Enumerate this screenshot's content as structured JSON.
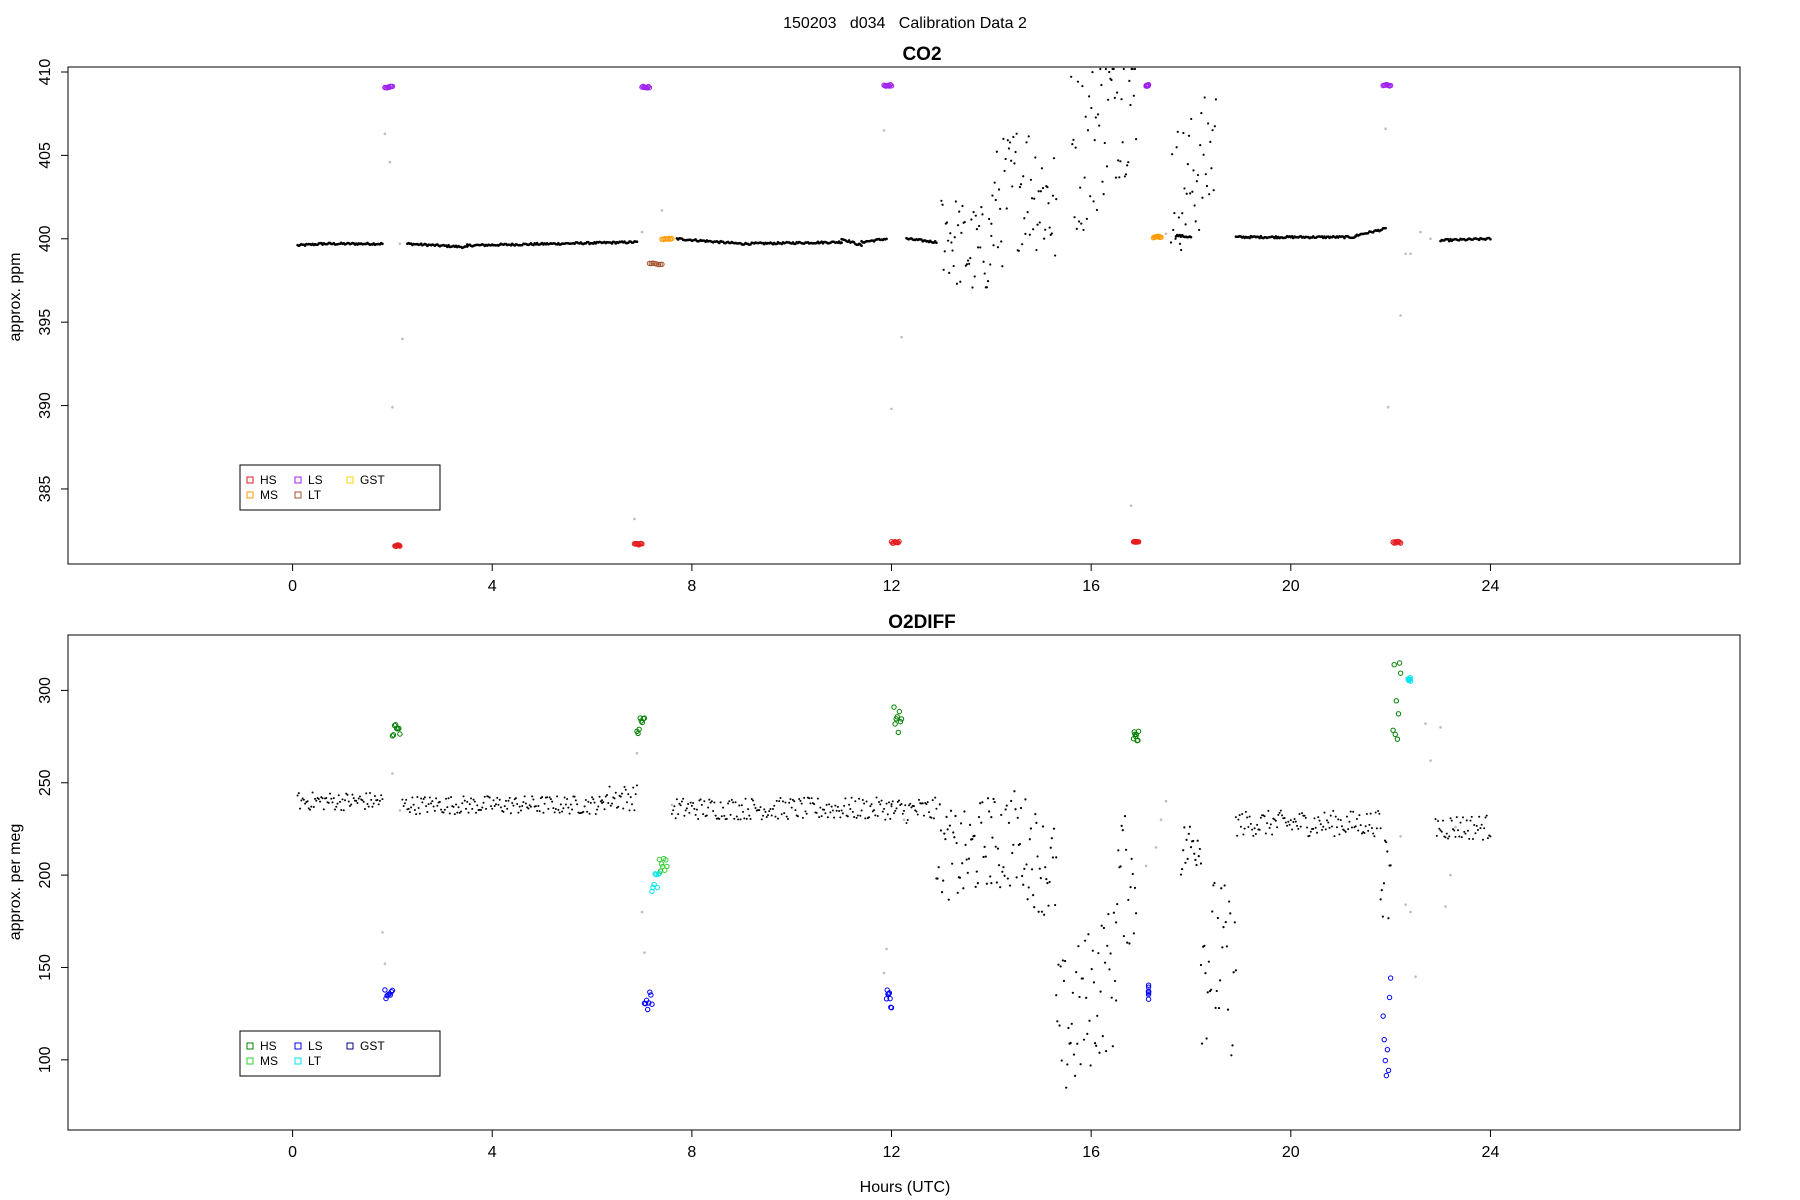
{
  "figure_title": "150203   d034   Calibration Data 2",
  "xlabel": "Hours (UTC)",
  "colors": {
    "ambient": "#000000",
    "grey": "#bdbdbd"
  },
  "chart_data": [
    {
      "type": "scatter",
      "title": "CO2",
      "xlabel": "",
      "ylabel": "approx. ppm",
      "xlim": [
        -4.5,
        29
      ],
      "ylim": [
        380.5,
        410.3
      ],
      "xticks": [
        0,
        4,
        8,
        12,
        16,
        20,
        24
      ],
      "yticks": [
        385,
        390,
        395,
        400,
        405,
        410
      ],
      "legend": {
        "position": "bottom-left",
        "entries": [
          {
            "label": "HS",
            "color": "#e41a1c"
          },
          {
            "label": "MS",
            "color": "#ff9900"
          },
          {
            "label": "LS",
            "color": "#a020f0"
          },
          {
            "label": "LT",
            "color": "#a0522d"
          },
          {
            "label": "GST",
            "color": "#ffd700"
          }
        ]
      },
      "ambient_segments": [
        [
          0.1,
          0.6,
          399.6,
          399.7
        ],
        [
          0.6,
          1.8,
          399.7,
          399.7
        ],
        [
          2.3,
          3.5,
          399.7,
          399.5
        ],
        [
          3.5,
          6.9,
          399.6,
          399.8
        ],
        [
          7.7,
          9.0,
          400.0,
          399.7
        ],
        [
          9.0,
          11.0,
          399.7,
          399.8
        ],
        [
          11.0,
          11.4,
          400.0,
          399.6
        ],
        [
          11.4,
          11.9,
          399.8,
          400.0
        ],
        [
          12.3,
          12.9,
          400.0,
          399.8
        ],
        [
          17.7,
          18.0,
          400.2,
          400.1
        ],
        [
          18.9,
          21.3,
          400.1,
          400.1
        ],
        [
          21.3,
          21.9,
          400.2,
          400.6
        ],
        [
          23.0,
          24.0,
          399.9,
          400.0
        ]
      ],
      "variable_segments": [
        [
          13.0,
          14.0,
          400.2,
          2.8
        ],
        [
          14.0,
          15.3,
          402.0,
          4.0
        ],
        [
          15.6,
          16.9,
          407.0,
          5.0
        ],
        [
          17.6,
          18.5,
          404.5,
          4.0
        ]
      ],
      "grey_points": [
        [
          1.85,
          406.3
        ],
        [
          1.95,
          404.6
        ],
        [
          2.15,
          399.7
        ],
        [
          2.2,
          394.0
        ],
        [
          2.0,
          389.9
        ],
        [
          7.0,
          400.4
        ],
        [
          7.4,
          401.7
        ],
        [
          6.85,
          383.2
        ],
        [
          11.85,
          406.5
        ],
        [
          12.0,
          389.8
        ],
        [
          12.2,
          394.1
        ],
        [
          16.8,
          384.0
        ],
        [
          17.5,
          400.3
        ],
        [
          21.95,
          389.9
        ],
        [
          21.9,
          406.6
        ],
        [
          22.3,
          399.1
        ],
        [
          22.4,
          399.1
        ],
        [
          22.6,
          400.4
        ],
        [
          22.8,
          400.0
        ],
        [
          22.2,
          395.4
        ]
      ],
      "cal_groups": [
        {
          "label": "LS",
          "x": [
            1.85,
            2.0
          ],
          "y": 409.1
        },
        {
          "label": "HS",
          "x": [
            2.05,
            2.15
          ],
          "y": 381.6
        },
        {
          "label": "HS",
          "x": [
            6.85,
            7.0
          ],
          "y": 381.7
        },
        {
          "label": "LS",
          "x": [
            7.0,
            7.15
          ],
          "y": 409.1
        },
        {
          "label": "LT",
          "x": [
            7.15,
            7.4
          ],
          "y": 398.5
        },
        {
          "label": "MS",
          "x": [
            7.4,
            7.6
          ],
          "y": 400.0
        },
        {
          "label": "LS",
          "x": [
            11.85,
            12.0
          ],
          "y": 409.2
        },
        {
          "label": "HS",
          "x": [
            12.0,
            12.15
          ],
          "y": 381.8
        },
        {
          "label": "HS",
          "x": [
            16.85,
            16.95
          ],
          "y": 381.8
        },
        {
          "label": "LS",
          "x": [
            17.1,
            17.15
          ],
          "y": 409.2
        },
        {
          "label": "MS",
          "x": [
            17.25,
            17.4
          ],
          "y": 400.1
        },
        {
          "label": "LS",
          "x": [
            21.85,
            22.0
          ],
          "y": 409.2
        },
        {
          "label": "HS",
          "x": [
            22.05,
            22.2
          ],
          "y": 381.8
        }
      ]
    },
    {
      "type": "scatter",
      "title": "O2DIFF",
      "xlabel": "Hours (UTC)",
      "ylabel": "approx. per meg",
      "xlim": [
        -4.5,
        29
      ],
      "ylim": [
        62,
        330
      ],
      "xticks": [
        0,
        4,
        8,
        12,
        16,
        20,
        24
      ],
      "yticks": [
        100,
        150,
        200,
        250,
        300
      ],
      "legend": {
        "position": "bottom-left",
        "entries": [
          {
            "label": "HS",
            "color": "#008000"
          },
          {
            "label": "MS",
            "color": "#32cd32"
          },
          {
            "label": "LS",
            "color": "#0000ff"
          },
          {
            "label": "LT",
            "color": "#00e5ee"
          },
          {
            "label": "GST",
            "color": "#00008b"
          }
        ]
      },
      "ambient_segments": [
        [
          0.1,
          1.8,
          240,
          5
        ],
        [
          2.2,
          6.2,
          238,
          5
        ],
        [
          6.2,
          6.9,
          242,
          7
        ],
        [
          7.6,
          12.0,
          236,
          6
        ],
        [
          12.0,
          12.9,
          235,
          7
        ],
        [
          18.9,
          21.8,
          228,
          7
        ],
        [
          22.9,
          24.0,
          226,
          7
        ]
      ],
      "variable_segments": [
        [
          12.9,
          14.0,
          218,
          25
        ],
        [
          14.0,
          15.3,
          210,
          28
        ],
        [
          15.3,
          16.5,
          130,
          40
        ],
        [
          16.5,
          16.9,
          190,
          35
        ],
        [
          17.8,
          18.2,
          215,
          15
        ],
        [
          18.2,
          18.9,
          140,
          45
        ],
        [
          21.8,
          22.0,
          195,
          30
        ]
      ],
      "grey_points": [
        [
          1.8,
          169
        ],
        [
          1.85,
          152
        ],
        [
          2.0,
          255
        ],
        [
          2.15,
          235
        ],
        [
          6.9,
          266
        ],
        [
          7.0,
          180
        ],
        [
          7.05,
          158
        ],
        [
          7.6,
          238
        ],
        [
          11.85,
          147
        ],
        [
          11.9,
          160
        ],
        [
          12.25,
          230
        ],
        [
          17.1,
          205
        ],
        [
          17.3,
          215
        ],
        [
          17.4,
          230
        ],
        [
          17.5,
          240
        ],
        [
          22.2,
          221
        ],
        [
          22.3,
          184
        ],
        [
          22.4,
          180
        ],
        [
          22.5,
          145
        ],
        [
          22.7,
          282
        ],
        [
          22.8,
          262
        ],
        [
          23.0,
          280
        ],
        [
          23.1,
          183
        ],
        [
          23.2,
          200
        ],
        [
          23.3,
          226
        ]
      ],
      "cal_groups": [
        {
          "label": "LS",
          "x": [
            1.85,
            2.0
          ],
          "y": 135,
          "spread": 4
        },
        {
          "label": "HS",
          "x": [
            2.0,
            2.15
          ],
          "y": 279,
          "spread": 4
        },
        {
          "label": "HS",
          "x": [
            6.9,
            7.05
          ],
          "y": 281,
          "spread": 6
        },
        {
          "label": "LS",
          "x": [
            7.05,
            7.2
          ],
          "y": 131,
          "spread": 7
        },
        {
          "label": "LT",
          "x": [
            7.2,
            7.35
          ],
          "y": 196,
          "spread": 6
        },
        {
          "label": "MS",
          "x": [
            7.35,
            7.5
          ],
          "y": 206,
          "spread": 4
        },
        {
          "label": "LS",
          "x": [
            11.9,
            12.0
          ],
          "y": 133,
          "spread": 5
        },
        {
          "label": "HS",
          "x": [
            12.05,
            12.2
          ],
          "y": 285,
          "spread": 8
        },
        {
          "label": "HS",
          "x": [
            16.85,
            16.95
          ],
          "y": 276,
          "spread": 4
        },
        {
          "label": "LS",
          "x": [
            17.15,
            17.15
          ],
          "y": 137,
          "spread": 5
        },
        {
          "label": "LS",
          "x": [
            21.85,
            22.0
          ],
          "y": 115,
          "spread": 30
        },
        {
          "label": "HS",
          "x": [
            22.05,
            22.2
          ],
          "y": 290,
          "spread": 25
        },
        {
          "label": "LT",
          "x": [
            22.35,
            22.4
          ],
          "y": 306,
          "spread": 1
        }
      ]
    }
  ]
}
